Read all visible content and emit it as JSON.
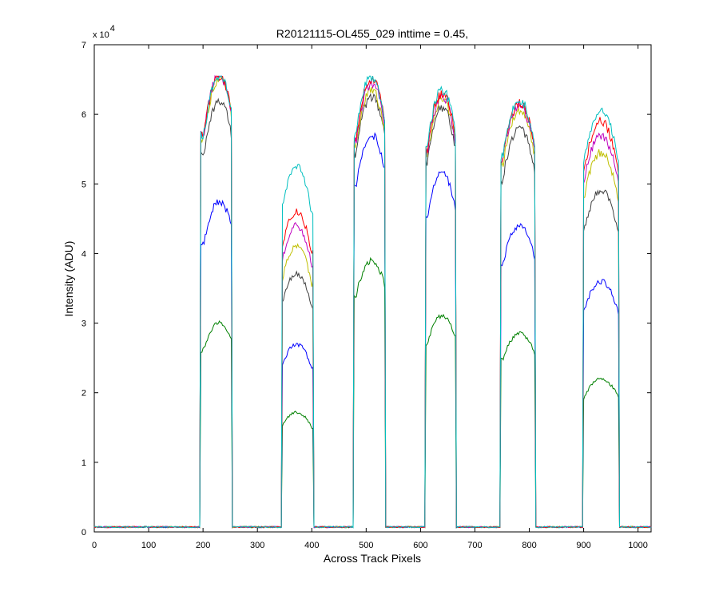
{
  "chart_data": {
    "type": "line",
    "title": "R20121115-OL455_029 inttime = 0.45,",
    "xlabel": "Across Track Pixels",
    "ylabel": "Intensity (ADU)",
    "xlim": [
      0,
      1024
    ],
    "ylim": [
      0,
      7
    ],
    "y_multiplier_text": "x 10",
    "y_multiplier_exp": "4",
    "xticks": [
      0,
      100,
      200,
      300,
      400,
      500,
      600,
      700,
      800,
      900,
      1000
    ],
    "yticks": [
      0,
      1,
      2,
      3,
      4,
      5,
      6,
      7
    ],
    "xtick_labels": [
      "0",
      "100",
      "200",
      "300",
      "400",
      "500",
      "600",
      "700",
      "800",
      "900",
      "1000"
    ],
    "ytick_labels": [
      "0",
      "1",
      "2",
      "3",
      "4",
      "5",
      "6",
      "7"
    ],
    "baseline": 0.07,
    "windows": [
      {
        "start": 195,
        "end": 252,
        "center": 230
      },
      {
        "start": 346,
        "end": 402,
        "center": 372
      },
      {
        "start": 478,
        "end": 535,
        "center": 510
      },
      {
        "start": 610,
        "end": 665,
        "center": 640
      },
      {
        "start": 748,
        "end": 810,
        "center": 782
      },
      {
        "start": 900,
        "end": 965,
        "center": 932
      }
    ],
    "series": [
      {
        "name": "green-low",
        "color": "#008000",
        "levels": [
          3.0,
          1.72,
          3.9,
          3.1,
          2.85,
          2.2
        ]
      },
      {
        "name": "blue",
        "color": "#0000ff",
        "levels": [
          4.75,
          2.7,
          5.7,
          5.15,
          4.4,
          3.6
        ]
      },
      {
        "name": "black",
        "color": "#404040",
        "levels": [
          6.2,
          3.7,
          6.25,
          6.1,
          5.8,
          4.9
        ]
      },
      {
        "name": "yellow",
        "color": "#bfbf00",
        "levels": [
          6.5,
          4.1,
          6.35,
          6.2,
          6.05,
          5.45
        ]
      },
      {
        "name": "magenta",
        "color": "#bf00bf",
        "levels": [
          6.55,
          4.4,
          6.45,
          6.25,
          6.12,
          5.7
        ]
      },
      {
        "name": "red",
        "color": "#ff0000",
        "levels": [
          6.55,
          4.6,
          6.5,
          6.3,
          6.15,
          5.9
        ]
      },
      {
        "name": "cyan",
        "color": "#00bfbf",
        "levels": [
          6.55,
          5.25,
          6.55,
          6.35,
          6.2,
          6.05
        ]
      }
    ]
  }
}
